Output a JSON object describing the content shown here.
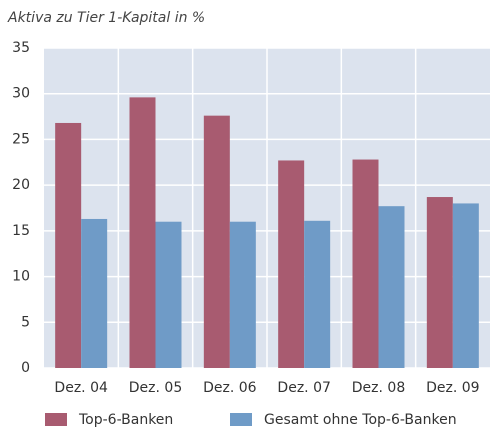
{
  "chart_data": {
    "type": "bar",
    "title": "Aktiva zu Tier 1-Kapital in %",
    "categories": [
      "Dez. 04",
      "Dez. 05",
      "Dez. 06",
      "Dez. 07",
      "Dez. 08",
      "Dez. 09"
    ],
    "series": [
      {
        "name": "Top-6-Banken",
        "color": "#a85b70",
        "values": [
          26.8,
          29.6,
          27.6,
          22.7,
          22.8,
          18.7
        ]
      },
      {
        "name": "Gesamt ohne Top-6-Banken",
        "color": "#6f9bc7",
        "values": [
          16.3,
          16.0,
          16.0,
          16.1,
          17.7,
          18.0
        ]
      }
    ],
    "ylim": [
      0,
      35
    ],
    "yticks": [
      0,
      5,
      10,
      15,
      20,
      25,
      30,
      35
    ],
    "grid": true
  }
}
